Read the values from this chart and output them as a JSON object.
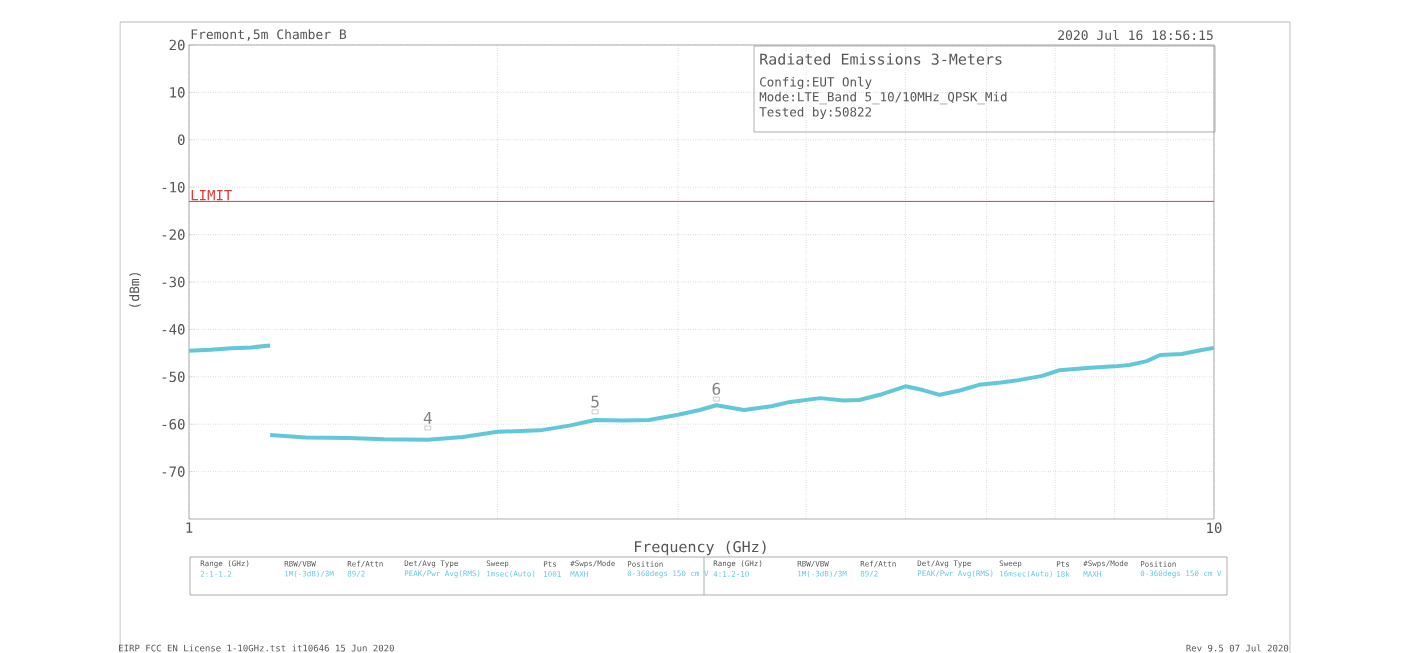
{
  "chart_data": {
    "type": "line",
    "title": "Radiated Emissions 3-Meters",
    "xlabel": "Frequency (GHz)",
    "ylabel": "(dBm)",
    "log": "x",
    "grid": true,
    "xlim": [
      1,
      10
    ],
    "ylim": [
      -80,
      20
    ],
    "xticks": [
      1,
      {
        "value": 2,
        "label": null
      },
      {
        "value": 3,
        "label": null
      },
      {
        "value": 4,
        "label": null
      },
      {
        "value": 5,
        "label": null
      },
      {
        "value": 6,
        "label": null
      },
      {
        "value": 7,
        "label": null
      },
      {
        "value": 8,
        "label": null
      },
      {
        "value": 9,
        "label": null
      },
      10
    ],
    "yticks": [
      20,
      10,
      0,
      -10,
      -20,
      -30,
      -40,
      -50,
      -60,
      -70
    ],
    "series": [
      {
        "color": "#62c8d9",
        "x": [
          1,
          1.05,
          1.1,
          1.15,
          1.2
        ],
        "values": [
          -44.5,
          -44.3,
          -44,
          -43.8,
          -43.4
        ]
      },
      {
        "color": "#62c8d9",
        "x": [
          1.2,
          1.3,
          1.43,
          1.55,
          1.71,
          1.85,
          2,
          2.2,
          2.35,
          2.49,
          2.65,
          2.81,
          3,
          3.15,
          3.27,
          3.48,
          3.7,
          3.86,
          4.13,
          4.35,
          4.51,
          4.72,
          5,
          5.2,
          5.4,
          5.65,
          5.9,
          6.2,
          6.45,
          6.8,
          7.07,
          7.57,
          8,
          8.27,
          8.6,
          8.86,
          9.3,
          9.7,
          10
        ],
        "values": [
          -62.3,
          -62.8,
          -62.9,
          -63.2,
          -63.3,
          -62.7,
          -61.6,
          -61.3,
          -60.3,
          -59.1,
          -59.2,
          -59.1,
          -58,
          -57,
          -56,
          -57,
          -56.2,
          -55.3,
          -54.5,
          -55,
          -54.9,
          -53.8,
          -52,
          -52.8,
          -53.8,
          -52.9,
          -51.7,
          -51.2,
          -50.7,
          -49.8,
          -48.6,
          -48.1,
          -47.8,
          -47.5,
          -46.7,
          -45.4,
          -45.2,
          -44.4,
          -43.9
        ]
      }
    ],
    "ref_lines": [
      {
        "axis": "y",
        "value": -13,
        "label": "LIMIT",
        "color": "#e03a3a"
      }
    ],
    "annotations": [
      "Fremont,5m Chamber B",
      "2020 Jul 16    18:56:15",
      "Config:EUT Only",
      "Mode:LTE_Band 5_10/10MHz_QPSK_Mid",
      "Tested by:50822",
      {
        "text": "4",
        "x": 1.71,
        "y": -60.8
      },
      {
        "text": "5",
        "x": 2.49,
        "y": -57.4
      },
      {
        "text": "6",
        "x": 3.27,
        "y": -54.7
      },
      "Range (GHz)",
      "RBW/VBW",
      "Ref/Attn",
      "Det/Avg Type",
      "Sweep",
      "Pts",
      "#Swps/Mode",
      "Position",
      "2:1-1.2",
      "1M(-3dB)/3M",
      "89/2",
      "PEAK/Pwr Avg(RMS)",
      "1msec(Auto)",
      "1001",
      "MAXH",
      "0-360degs 150 cm V",
      "Range (GHz)",
      "RBW/VBW",
      "Ref/Attn",
      "Det/Avg Type",
      "Sweep",
      "Pts",
      "#Swps/Mode",
      "Position",
      "4:1.2-10",
      "1M(-3dB)/3M",
      "89/2",
      "PEAK/Pwr Avg(RMS)",
      "16msec(Auto)",
      "18k",
      "MAXH",
      "0-360degs 150 cm V",
      "EIRP FCC EN License 1-10GHz.tst it10646 15 Jun 2020",
      "Rev 9.5 07 Jul 2020"
    ]
  }
}
